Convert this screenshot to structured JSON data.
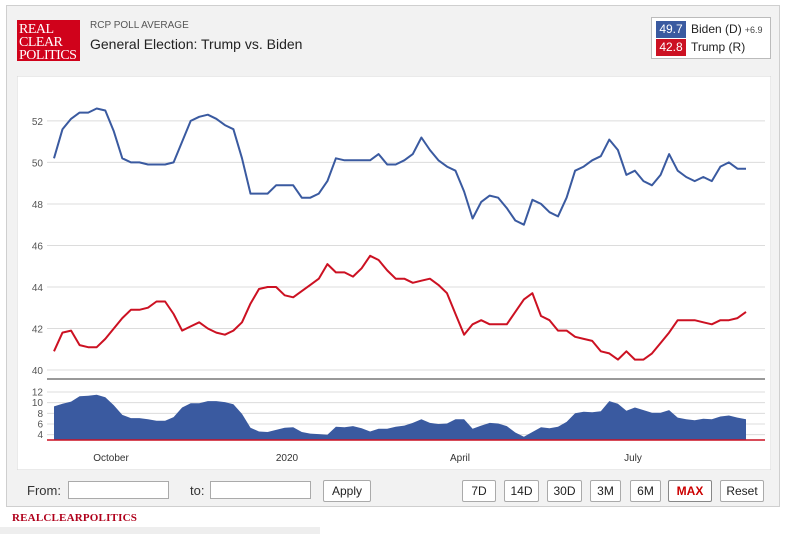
{
  "header": {
    "logo_lines": [
      "REAL",
      "CLEAR",
      "POLITICS"
    ],
    "subtitle": "RCP POLL AVERAGE",
    "title": "General Election: Trump vs. Biden"
  },
  "legend": [
    {
      "value": "49.7",
      "name": "Biden (D)",
      "spread": "+6.9",
      "color": "#3a5aa0"
    },
    {
      "value": "42.8",
      "name": "Trump (R)",
      "spread": "",
      "color": "#cc1122"
    }
  ],
  "controls": {
    "from_label": "From:",
    "to_label": "to:",
    "from_value": "",
    "to_value": "",
    "apply_label": "Apply",
    "ranges": [
      "7D",
      "14D",
      "30D",
      "3M",
      "6M",
      "MAX"
    ],
    "active_range": "MAX",
    "reset_label": "Reset"
  },
  "watermark": "REALCLEARPOLITICS",
  "chart_data": {
    "type": "line",
    "x_labels": [
      "October",
      "2020",
      "April",
      "July"
    ],
    "y_ticks": [
      40,
      42,
      44,
      46,
      48,
      50,
      52
    ],
    "ylim": [
      40,
      53.2
    ],
    "grid": true,
    "series": [
      {
        "name": "Biden (D)",
        "color": "#3a5aa0",
        "values": [
          50.2,
          51.6,
          52.1,
          52.4,
          52.4,
          52.6,
          52.5,
          51.5,
          50.2,
          50.0,
          50.0,
          49.9,
          49.9,
          49.9,
          50.0,
          51.0,
          52.0,
          52.2,
          52.3,
          52.1,
          51.8,
          51.6,
          50.2,
          48.5,
          48.5,
          48.5,
          48.9,
          48.9,
          48.9,
          48.3,
          48.3,
          48.5,
          49.1,
          50.2,
          50.1,
          50.1,
          50.1,
          50.1,
          50.4,
          49.9,
          49.9,
          50.1,
          50.4,
          51.2,
          50.6,
          50.1,
          49.8,
          49.6,
          48.6,
          47.3,
          48.1,
          48.4,
          48.3,
          47.8,
          47.2,
          47.0,
          48.2,
          48.0,
          47.6,
          47.4,
          48.3,
          49.6,
          49.8,
          50.1,
          50.3,
          51.1,
          50.6,
          49.4,
          49.6,
          49.1,
          48.9,
          49.4,
          50.4,
          49.6,
          49.3,
          49.1,
          49.3,
          49.1,
          49.8,
          50.0,
          49.7,
          49.7
        ]
      },
      {
        "name": "Trump (R)",
        "color": "#cc1122",
        "values": [
          40.9,
          41.8,
          41.9,
          41.2,
          41.1,
          41.1,
          41.5,
          42.0,
          42.5,
          42.9,
          42.9,
          43.0,
          43.3,
          43.3,
          42.7,
          41.9,
          42.1,
          42.3,
          42.0,
          41.8,
          41.7,
          41.9,
          42.3,
          43.2,
          43.9,
          44.0,
          44.0,
          43.6,
          43.5,
          43.8,
          44.1,
          44.4,
          45.1,
          44.7,
          44.7,
          44.5,
          44.9,
          45.5,
          45.3,
          44.8,
          44.4,
          44.4,
          44.2,
          44.3,
          44.4,
          44.1,
          43.7,
          42.7,
          41.7,
          42.2,
          42.4,
          42.2,
          42.2,
          42.2,
          42.8,
          43.4,
          43.7,
          42.6,
          42.4,
          41.9,
          41.9,
          41.6,
          41.5,
          41.4,
          40.9,
          40.8,
          40.5,
          40.9,
          40.5,
          40.5,
          40.8,
          41.3,
          41.8,
          42.4,
          42.4,
          42.4,
          42.3,
          42.2,
          42.4,
          42.4,
          42.5,
          42.8
        ]
      }
    ],
    "spread_panel": {
      "y_ticks": [
        4,
        6,
        8,
        10,
        12
      ],
      "ylim": [
        3,
        12
      ],
      "color": "#3a5aa0",
      "values": [
        9.3,
        9.8,
        10.2,
        11.2,
        11.3,
        11.5,
        11.0,
        9.5,
        7.7,
        7.1,
        7.1,
        6.9,
        6.6,
        6.6,
        7.3,
        9.1,
        9.9,
        9.9,
        10.3,
        10.3,
        10.1,
        9.7,
        7.9,
        5.3,
        4.6,
        4.5,
        4.9,
        5.3,
        5.4,
        4.5,
        4.2,
        4.1,
        4.0,
        5.5,
        5.4,
        5.6,
        5.2,
        4.6,
        5.1,
        5.1,
        5.5,
        5.7,
        6.2,
        6.9,
        6.2,
        6.0,
        6.1,
        6.9,
        6.9,
        5.1,
        5.7,
        6.2,
        6.1,
        5.6,
        4.4,
        3.6,
        4.5,
        5.4,
        5.2,
        5.5,
        6.4,
        8.0,
        8.3,
        8.2,
        8.4,
        10.3,
        9.8,
        8.5,
        9.1,
        8.6,
        8.1,
        8.1,
        8.6,
        7.2,
        6.9,
        6.7,
        7.0,
        6.9,
        7.4,
        7.6,
        7.2,
        6.9
      ]
    }
  }
}
